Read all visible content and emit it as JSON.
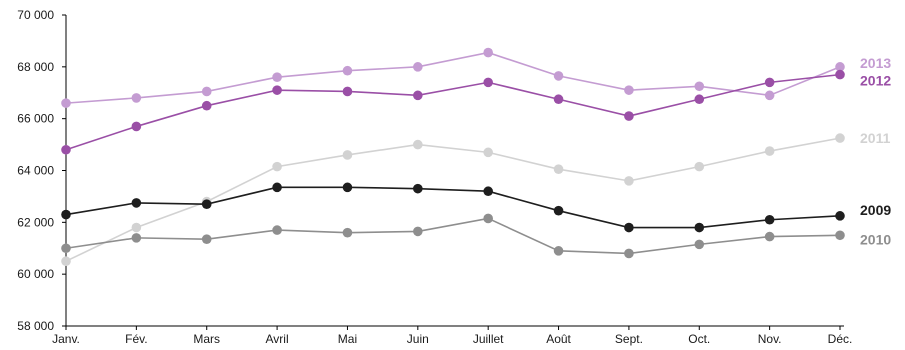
{
  "chart_data": {
    "type": "line",
    "title": "",
    "xlabel": "",
    "ylabel": "",
    "categories": [
      "Janv.",
      "Fév.",
      "Mars",
      "Avril",
      "Mai",
      "Juin",
      "Juillet",
      "Août",
      "Sept.",
      "Oct.",
      "Nov.",
      "Déc."
    ],
    "ylim": [
      58000,
      70000
    ],
    "yticks": [
      58000,
      60000,
      62000,
      64000,
      66000,
      68000,
      70000
    ],
    "ytick_labels": [
      "58 000",
      "60 000",
      "62 000",
      "64 000",
      "66 000",
      "68 000",
      "70 000"
    ],
    "grid": false,
    "legend": "inline labels at right end of each line",
    "series": [
      {
        "name": "2013",
        "color": "#c49cd2",
        "values": [
          66600,
          66800,
          67050,
          67600,
          67850,
          68000,
          68550,
          67650,
          67100,
          67250,
          66900,
          68000
        ]
      },
      {
        "name": "2012",
        "color": "#9a4fa6",
        "values": [
          64800,
          65700,
          66500,
          67100,
          67050,
          66900,
          67400,
          66750,
          66100,
          66750,
          67400,
          67700
        ]
      },
      {
        "name": "2011",
        "color": "#d2d2d2",
        "values": [
          60500,
          61800,
          62800,
          64150,
          64600,
          65000,
          64700,
          64050,
          63600,
          64150,
          64750,
          65250
        ]
      },
      {
        "name": "2009",
        "color": "#1e1e1e",
        "values": [
          62300,
          62750,
          62700,
          63350,
          63350,
          63300,
          63200,
          62450,
          61800,
          61800,
          62100,
          62250
        ]
      },
      {
        "name": "2010",
        "color": "#8e8e8e",
        "values": [
          61000,
          61400,
          61350,
          61700,
          61600,
          61650,
          62150,
          60900,
          60800,
          61150,
          61450,
          61500
        ]
      }
    ]
  }
}
